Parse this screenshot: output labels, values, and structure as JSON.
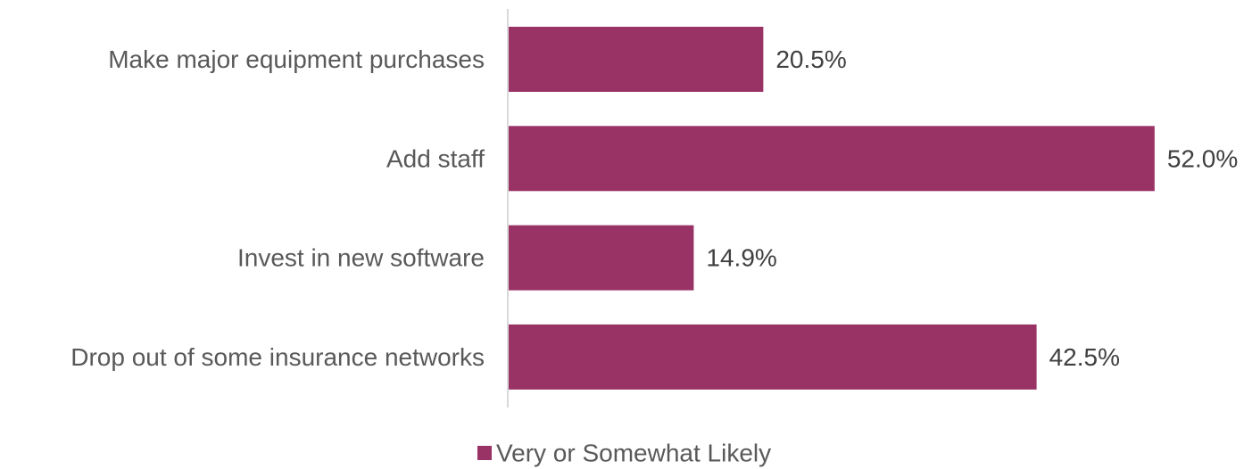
{
  "chart_data": {
    "type": "bar",
    "orientation": "horizontal",
    "categories": [
      "Make major equipment purchases",
      "Add staff",
      "Invest in new software",
      "Drop out of some insurance networks"
    ],
    "series": [
      {
        "name": "Very or Somewhat Likely",
        "values": [
          20.5,
          52.0,
          14.9,
          42.5
        ],
        "value_labels": [
          "20.5%",
          "52.0%",
          "14.9%",
          "42.5%"
        ],
        "color": "#993366"
      }
    ],
    "xlim": [
      0,
      60
    ],
    "grid": false,
    "legend_position": "bottom"
  }
}
